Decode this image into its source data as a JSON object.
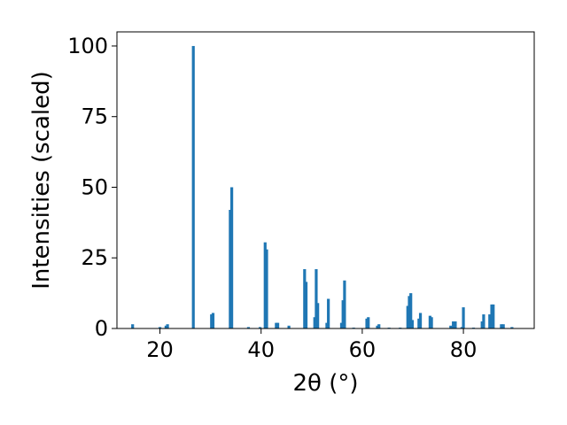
{
  "chart_data": {
    "type": "bar",
    "xlabel": "2θ (°)",
    "ylabel": "Intensities (scaled)",
    "xlim": [
      11.5,
      94
    ],
    "ylim": [
      0,
      105
    ],
    "xticks": [
      "20",
      "40",
      "60",
      "80"
    ],
    "yticks": [
      "0",
      "25",
      "50",
      "75",
      "100"
    ],
    "grid": false,
    "bar_color": "#1f77b4",
    "series": [
      {
        "x": [
          14.6,
          20.0,
          21.2,
          21.5,
          26.6,
          30.2,
          30.5,
          33.9,
          34.2,
          37.5,
          39.8,
          40.8,
          41.1,
          43.0,
          43.3,
          45.5,
          48.6,
          48.9,
          50.6,
          50.9,
          51.2,
          53.0,
          53.3,
          55.9,
          56.2,
          56.5,
          58.3,
          60.9,
          61.2,
          63.0,
          63.3,
          65.3,
          67.5,
          69.0,
          69.3,
          69.6,
          69.9,
          71.2,
          71.5,
          73.4,
          73.7,
          77.5,
          78.0,
          78.4,
          79.7,
          80.0,
          82.0,
          83.7,
          84.0,
          85.2,
          85.6,
          85.9,
          87.5,
          87.9,
          89.6
        ],
        "y": [
          1.5,
          0.5,
          1.0,
          1.5,
          100.0,
          5.0,
          5.5,
          42.0,
          50.0,
          0.5,
          0.5,
          30.5,
          28.0,
          2.0,
          2.0,
          1.0,
          21.0,
          16.5,
          4.0,
          21.0,
          9.0,
          2.0,
          10.5,
          2.0,
          10.0,
          17.0,
          0.3,
          3.5,
          4.0,
          1.0,
          1.5,
          0.3,
          0.3,
          8.0,
          11.5,
          12.5,
          3.0,
          3.5,
          5.5,
          4.5,
          4.0,
          1.0,
          2.5,
          2.5,
          0.5,
          7.5,
          0.3,
          2.5,
          5.0,
          5.0,
          8.5,
          8.5,
          1.5,
          1.5,
          0.5
        ]
      }
    ]
  }
}
